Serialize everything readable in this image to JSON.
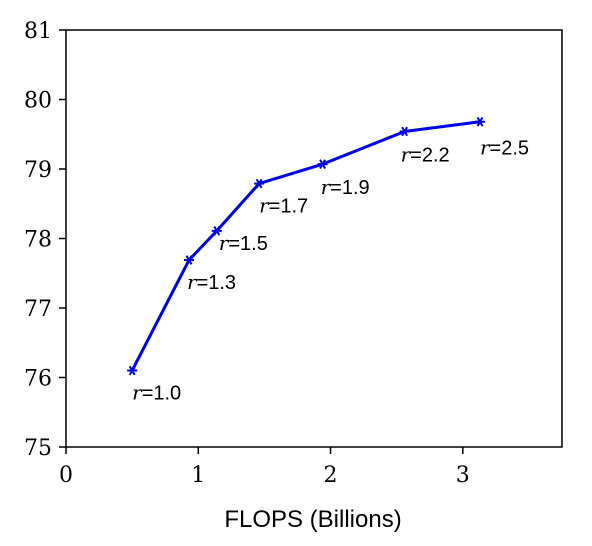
{
  "chart_data": {
    "type": "line",
    "title": "",
    "xlabel": "FLOPS (Billions)",
    "ylabel": "",
    "xlim": [
      0,
      3.75
    ],
    "ylim": [
      75,
      81
    ],
    "xticks": [
      0,
      1,
      2,
      3
    ],
    "yticks": [
      75,
      76,
      77,
      78,
      79,
      80,
      81
    ],
    "grid": false,
    "legend": "none",
    "color": "#0000ee",
    "series": [
      {
        "values": [
          {
            "x": 0.5,
            "y": 76.1,
            "label": "1.0"
          },
          {
            "x": 0.93,
            "y": 77.69,
            "label": "1.3"
          },
          {
            "x": 1.14,
            "y": 78.11,
            "label": "1.5"
          },
          {
            "x": 1.46,
            "y": 78.79,
            "label": "1.7"
          },
          {
            "x": 1.94,
            "y": 79.07,
            "label": "1.9"
          },
          {
            "x": 2.56,
            "y": 79.54,
            "label": "2.2"
          },
          {
            "x": 3.13,
            "y": 79.68,
            "label": "2.5"
          }
        ]
      }
    ],
    "label_prefix": "r",
    "label_sep": "="
  }
}
